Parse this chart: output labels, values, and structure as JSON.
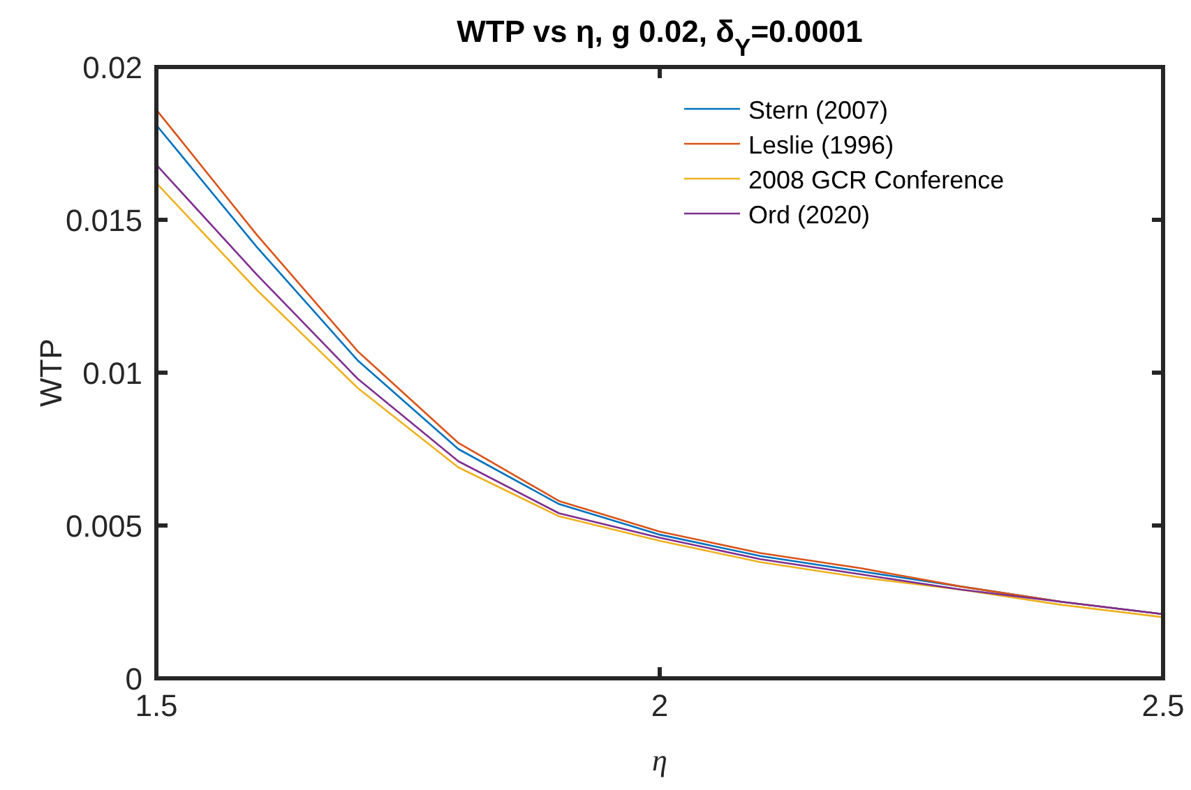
{
  "chart_data": {
    "type": "line",
    "title": "WTP vs η, g 0.02, δ$_{Y}$=0.0001",
    "xlabel": "η",
    "ylabel": "WTP",
    "x": [
      1.5,
      1.6,
      1.7,
      1.8,
      1.9,
      2.0,
      2.1,
      2.2,
      2.3,
      2.4,
      2.5
    ],
    "series": [
      {
        "name": "Stern (2007)",
        "color": "#0072bd",
        "values": [
          0.0181,
          0.0141,
          0.0104,
          0.0075,
          0.0057,
          0.0047,
          0.004,
          0.0035,
          0.003,
          0.0025,
          0.0021
        ]
      },
      {
        "name": "Leslie (1996)",
        "color": "#d95319",
        "values": [
          0.0186,
          0.0145,
          0.0107,
          0.0077,
          0.0058,
          0.0048,
          0.0041,
          0.0036,
          0.003,
          0.0025,
          0.0021
        ]
      },
      {
        "name": "2008 GCR Conference",
        "color": "#edb120",
        "values": [
          0.0162,
          0.0127,
          0.0095,
          0.0069,
          0.0053,
          0.0045,
          0.0038,
          0.0033,
          0.0029,
          0.0024,
          0.002
        ]
      },
      {
        "name": "Ord (2020)",
        "color": "#7e2f8e",
        "values": [
          0.0168,
          0.0132,
          0.0098,
          0.0071,
          0.0054,
          0.0046,
          0.0039,
          0.0034,
          0.0029,
          0.0025,
          0.0021
        ]
      }
    ],
    "xlim": [
      1.5,
      2.5
    ],
    "xticks": [
      1.5,
      2,
      2.5
    ],
    "ylim": [
      0,
      0.02
    ],
    "yticks": [
      0,
      0.005,
      0.01,
      0.015,
      0.02
    ],
    "legend": "top right",
    "grid": false,
    "marker": "none",
    "line_style": "solid"
  }
}
